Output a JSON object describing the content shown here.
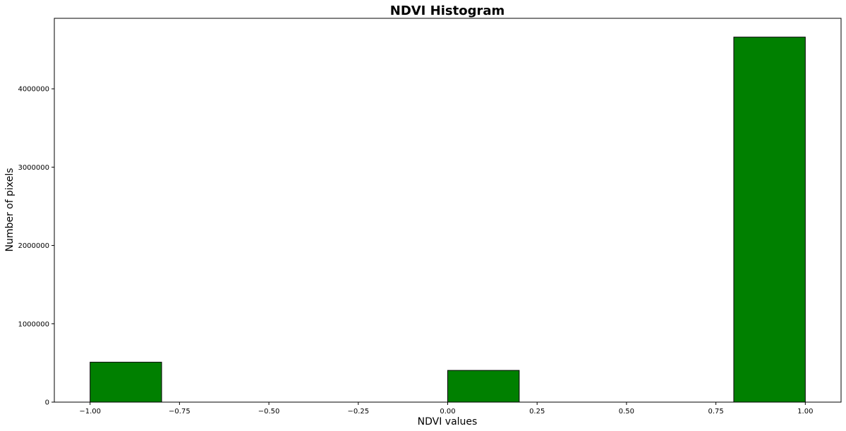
{
  "chart_data": {
    "type": "bar",
    "title": "NDVI Histogram",
    "xlabel": "NDVI values",
    "ylabel": "Number of pixels",
    "xlim": [
      -1.1,
      1.1
    ],
    "ylim": [
      0,
      4900000
    ],
    "x_ticks": [
      -1.0,
      -0.75,
      -0.5,
      -0.25,
      0.0,
      0.25,
      0.5,
      0.75,
      1.0
    ],
    "x_tick_labels": [
      "−1.00",
      "−0.75",
      "−0.50",
      "−0.25",
      "0.00",
      "0.25",
      "0.50",
      "0.75",
      "1.00"
    ],
    "y_ticks": [
      0,
      1000000,
      2000000,
      3000000,
      4000000
    ],
    "y_tick_labels": [
      "0",
      "1000000",
      "2000000",
      "3000000",
      "4000000"
    ],
    "bins": [
      {
        "x_start": -1.0,
        "x_end": -0.8,
        "count": 510000
      },
      {
        "x_start": -0.8,
        "x_end": -0.6,
        "count": 0
      },
      {
        "x_start": -0.6,
        "x_end": -0.4,
        "count": 0
      },
      {
        "x_start": -0.4,
        "x_end": -0.2,
        "count": 0
      },
      {
        "x_start": -0.2,
        "x_end": 0.0,
        "count": 0
      },
      {
        "x_start": 0.0,
        "x_end": 0.2,
        "count": 405000
      },
      {
        "x_start": 0.2,
        "x_end": 0.4,
        "count": 0
      },
      {
        "x_start": 0.4,
        "x_end": 0.6,
        "count": 0
      },
      {
        "x_start": 0.6,
        "x_end": 0.8,
        "count": 0
      },
      {
        "x_start": 0.8,
        "x_end": 1.0,
        "count": 4660000
      }
    ],
    "bar_color": "#008000",
    "edge_color": "#000000",
    "grid": false,
    "legend": "none"
  }
}
